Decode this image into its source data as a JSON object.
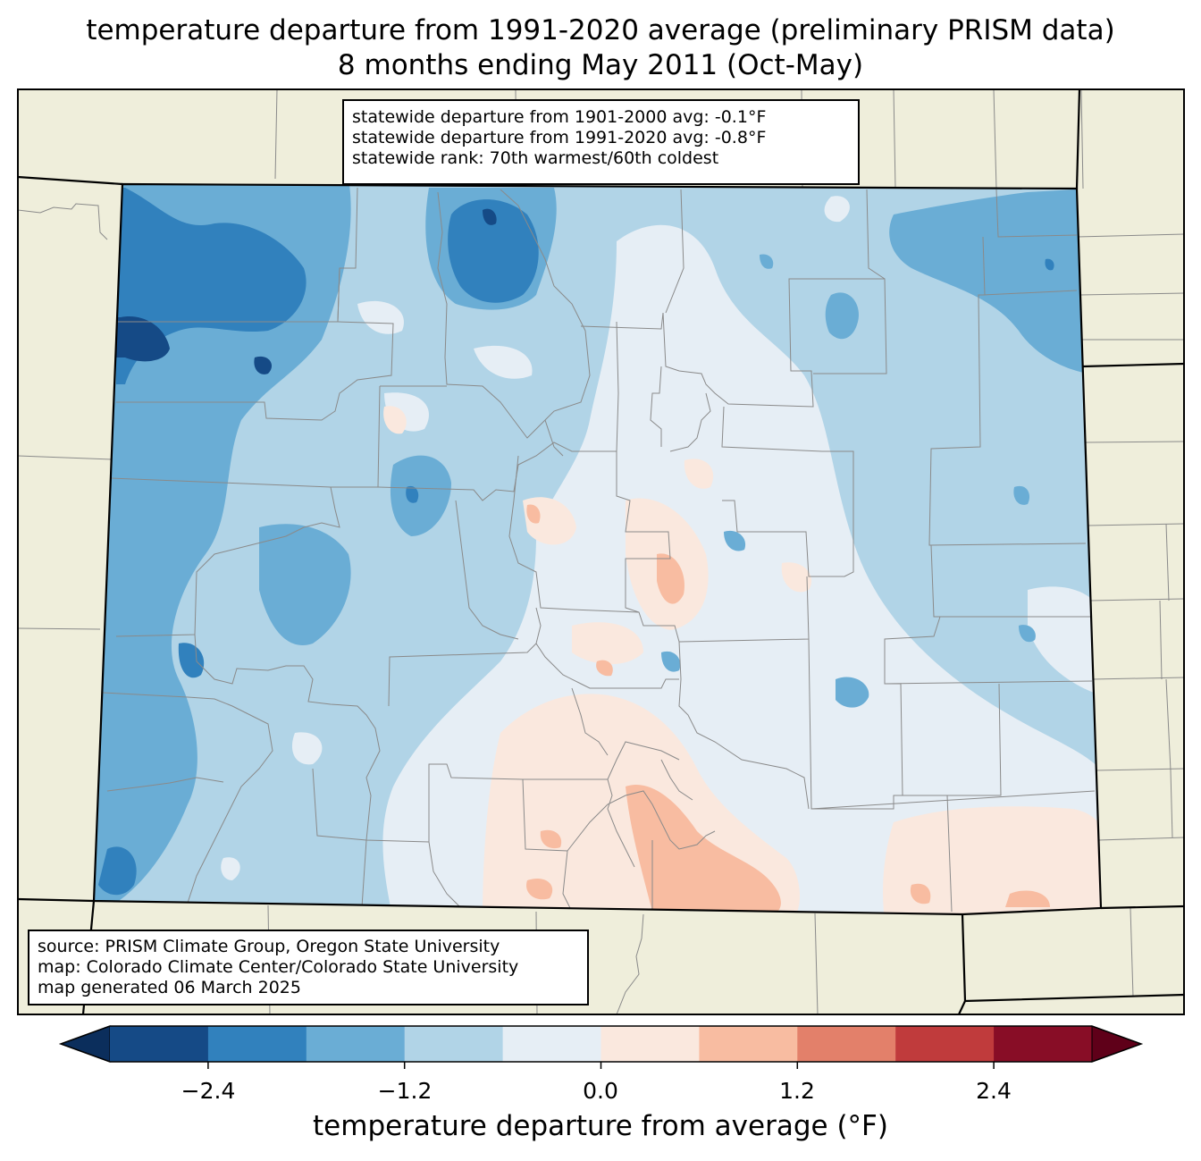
{
  "title_line1": "temperature departure from 1991-2020 average (preliminary PRISM data)",
  "title_line2": "8 months ending May 2011 (Oct-May)",
  "stats": {
    "line1": "statewide departure from 1901-2000 avg: -0.1°F",
    "line2": "statewide departure from 1991-2020 avg: -0.8°F",
    "line3": "statewide rank: 70th warmest/60th coldest"
  },
  "source": {
    "line1": "source: PRISM Climate Group, Oregon State University",
    "line2": "map: Colorado Climate Center/Colorado State University",
    "line3": "map generated 06 March 2025"
  },
  "colorbar": {
    "label": "temperature departure from average (°F)",
    "ticks": [
      "−2.4",
      "−1.2",
      "0.0",
      "1.2",
      "2.4"
    ],
    "tick_values": [
      -2.4,
      -1.2,
      0.0,
      1.2,
      2.4
    ],
    "range": [
      -3.0,
      3.0
    ],
    "colors": {
      "under": "#0b2e5c",
      "bins": [
        "#154a86",
        "#3181bd",
        "#6aadd5",
        "#b1d4e7",
        "#e6eef5",
        "#fae8de",
        "#f8bca1",
        "#e3806a",
        "#c03b3c",
        "#880d26"
      ],
      "over": "#5f0019"
    }
  },
  "map_colors": {
    "background": "#efeedb",
    "county_lines": "#8a8a8a",
    "state_lines": "#000000"
  }
}
